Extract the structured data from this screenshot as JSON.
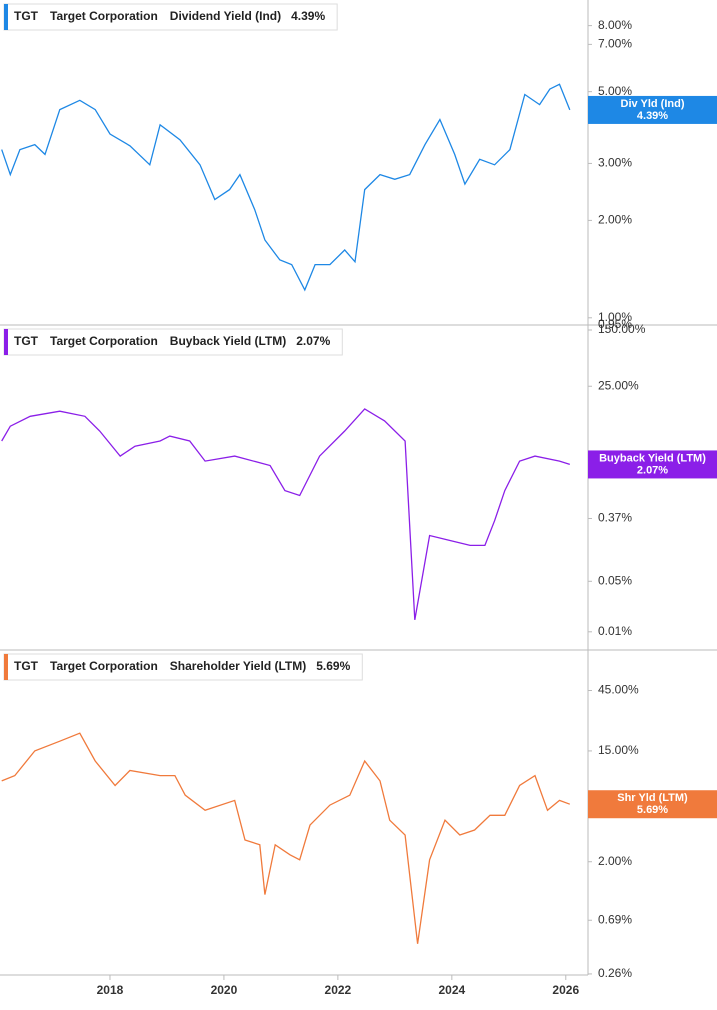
{
  "chart_data": [
    {
      "type": "line",
      "ticker": "TGT",
      "company": "Target Corporation",
      "badge_label": "Div Yld (Ind)",
      "last_value": 4.39,
      "last_value_label": "4.39%",
      "log_scale": true,
      "xlim": [
        2016.07,
        2026.39
      ],
      "ylim": [
        0.95,
        9.6
      ],
      "yticks": [
        {
          "value": 0.95,
          "label": "0.95%"
        },
        {
          "value": 1,
          "label": "1.00%"
        },
        {
          "value": 2,
          "label": "2.00%"
        },
        {
          "value": 3,
          "label": "3.00%"
        },
        {
          "value": 5,
          "label": "5.00%"
        },
        {
          "value": 7,
          "label": "7.00%"
        },
        {
          "value": 8,
          "label": "8.00%"
        }
      ],
      "x": [
        2016.1,
        2016.25,
        2016.42,
        2016.68,
        2016.86,
        2017.12,
        2017.47,
        2017.74,
        2018.0,
        2018.35,
        2018.7,
        2018.88,
        2019.23,
        2019.58,
        2019.84,
        2020.1,
        2020.28,
        2020.54,
        2020.72,
        2020.98,
        2021.19,
        2021.42,
        2021.6,
        2021.86,
        2022.12,
        2022.3,
        2022.47,
        2022.74,
        2023.0,
        2023.26,
        2023.53,
        2023.79,
        2024.05,
        2024.23,
        2024.49,
        2024.75,
        2025.02,
        2025.28,
        2025.54,
        2025.72,
        2025.89,
        2026.07
      ],
      "series": [
        {
          "name": "Dividend Yield (Ind)",
          "color": "#1e88e5",
          "values": [
            3.31,
            2.77,
            3.31,
            3.43,
            3.2,
            4.4,
            4.7,
            4.4,
            3.7,
            3.4,
            2.97,
            3.95,
            3.55,
            2.97,
            2.32,
            2.49,
            2.77,
            2.16,
            1.74,
            1.51,
            1.46,
            1.22,
            1.46,
            1.46,
            1.62,
            1.49,
            2.49,
            2.77,
            2.68,
            2.77,
            3.43,
            4.1,
            3.2,
            2.59,
            3.09,
            2.97,
            3.31,
            4.9,
            4.56,
            5.09,
            5.27,
            4.39
          ]
        }
      ]
    },
    {
      "type": "line",
      "ticker": "TGT",
      "company": "Target Corporation",
      "badge_label": "Buyback Yield (LTM)",
      "last_value": 2.07,
      "last_value_label": "2.07%",
      "log_scale": true,
      "xlim": [
        2016.07,
        2026.39
      ],
      "ylim": [
        0.0056,
        176
      ],
      "yticks": [
        {
          "value": 0.01,
          "label": "0.01%"
        },
        {
          "value": 0.05,
          "label": "0.05%"
        },
        {
          "value": 0.37,
          "label": "0.37%"
        },
        {
          "value": 25,
          "label": "25.00%"
        },
        {
          "value": 150,
          "label": "150.00%"
        }
      ],
      "x": [
        2016.1,
        2016.25,
        2016.6,
        2017.12,
        2017.56,
        2017.82,
        2018.18,
        2018.44,
        2018.88,
        2019.05,
        2019.4,
        2019.67,
        2020.19,
        2020.81,
        2021.07,
        2021.33,
        2021.68,
        2022.12,
        2022.47,
        2022.82,
        2023.18,
        2023.35,
        2023.61,
        2023.96,
        2024.32,
        2024.58,
        2024.75,
        2024.93,
        2025.19,
        2025.46,
        2025.89,
        2026.07
      ],
      "series": [
        {
          "name": "Buyback Yield (LTM)",
          "color": "#8b1fe8",
          "values": [
            4.37,
            7.0,
            9.6,
            11.3,
            9.6,
            6.0,
            2.7,
            3.7,
            4.37,
            5.1,
            4.37,
            2.3,
            2.7,
            2.0,
            0.9,
            0.77,
            2.7,
            6.0,
            12.1,
            8.3,
            4.37,
            0.0146,
            0.215,
            0.184,
            0.157,
            0.157,
            0.345,
            0.9,
            2.3,
            2.7,
            2.3,
            2.07
          ]
        }
      ]
    },
    {
      "type": "line",
      "ticker": "TGT",
      "company": "Target Corporation",
      "badge_label": "Shr Yld (LTM)",
      "last_value": 5.69,
      "last_value_label": "5.69%",
      "log_scale": true,
      "xlim": [
        2016.07,
        2026.39
      ],
      "ylim": [
        0.255,
        94
      ],
      "xticks": [
        2018,
        2020,
        2022,
        2024,
        2026
      ],
      "yticks": [
        {
          "value": 0.26,
          "label": "0.26%"
        },
        {
          "value": 0.69,
          "label": "0.69%"
        },
        {
          "value": 2,
          "label": "2.00%"
        },
        {
          "value": 15,
          "label": "15.00%"
        },
        {
          "value": 45,
          "label": "45.00%"
        }
      ],
      "x": [
        2016.1,
        2016.33,
        2016.68,
        2017.12,
        2017.47,
        2017.74,
        2018.09,
        2018.35,
        2018.88,
        2019.14,
        2019.32,
        2019.67,
        2020.19,
        2020.37,
        2020.63,
        2020.72,
        2020.9,
        2021.16,
        2021.33,
        2021.51,
        2021.86,
        2022.21,
        2022.47,
        2022.74,
        2022.91,
        2023.18,
        2023.4,
        2023.61,
        2023.88,
        2024.14,
        2024.4,
        2024.67,
        2024.93,
        2025.19,
        2025.46,
        2025.68,
        2025.89,
        2026.07
      ],
      "series": [
        {
          "name": "Shareholder Yield (LTM)",
          "color": "#f07a3c",
          "values": [
            8.7,
            9.57,
            15.0,
            17.9,
            20.7,
            12.5,
            8.0,
            10.5,
            9.57,
            9.57,
            6.7,
            5.1,
            6.1,
            2.97,
            2.72,
            1.1,
            2.72,
            2.27,
            2.07,
            3.89,
            5.6,
            6.7,
            12.5,
            8.7,
            4.26,
            3.25,
            0.45,
            2.07,
            4.26,
            3.25,
            3.56,
            4.65,
            4.65,
            8.0,
            9.57,
            5.1,
            6.1,
            5.69
          ]
        }
      ]
    }
  ]
}
